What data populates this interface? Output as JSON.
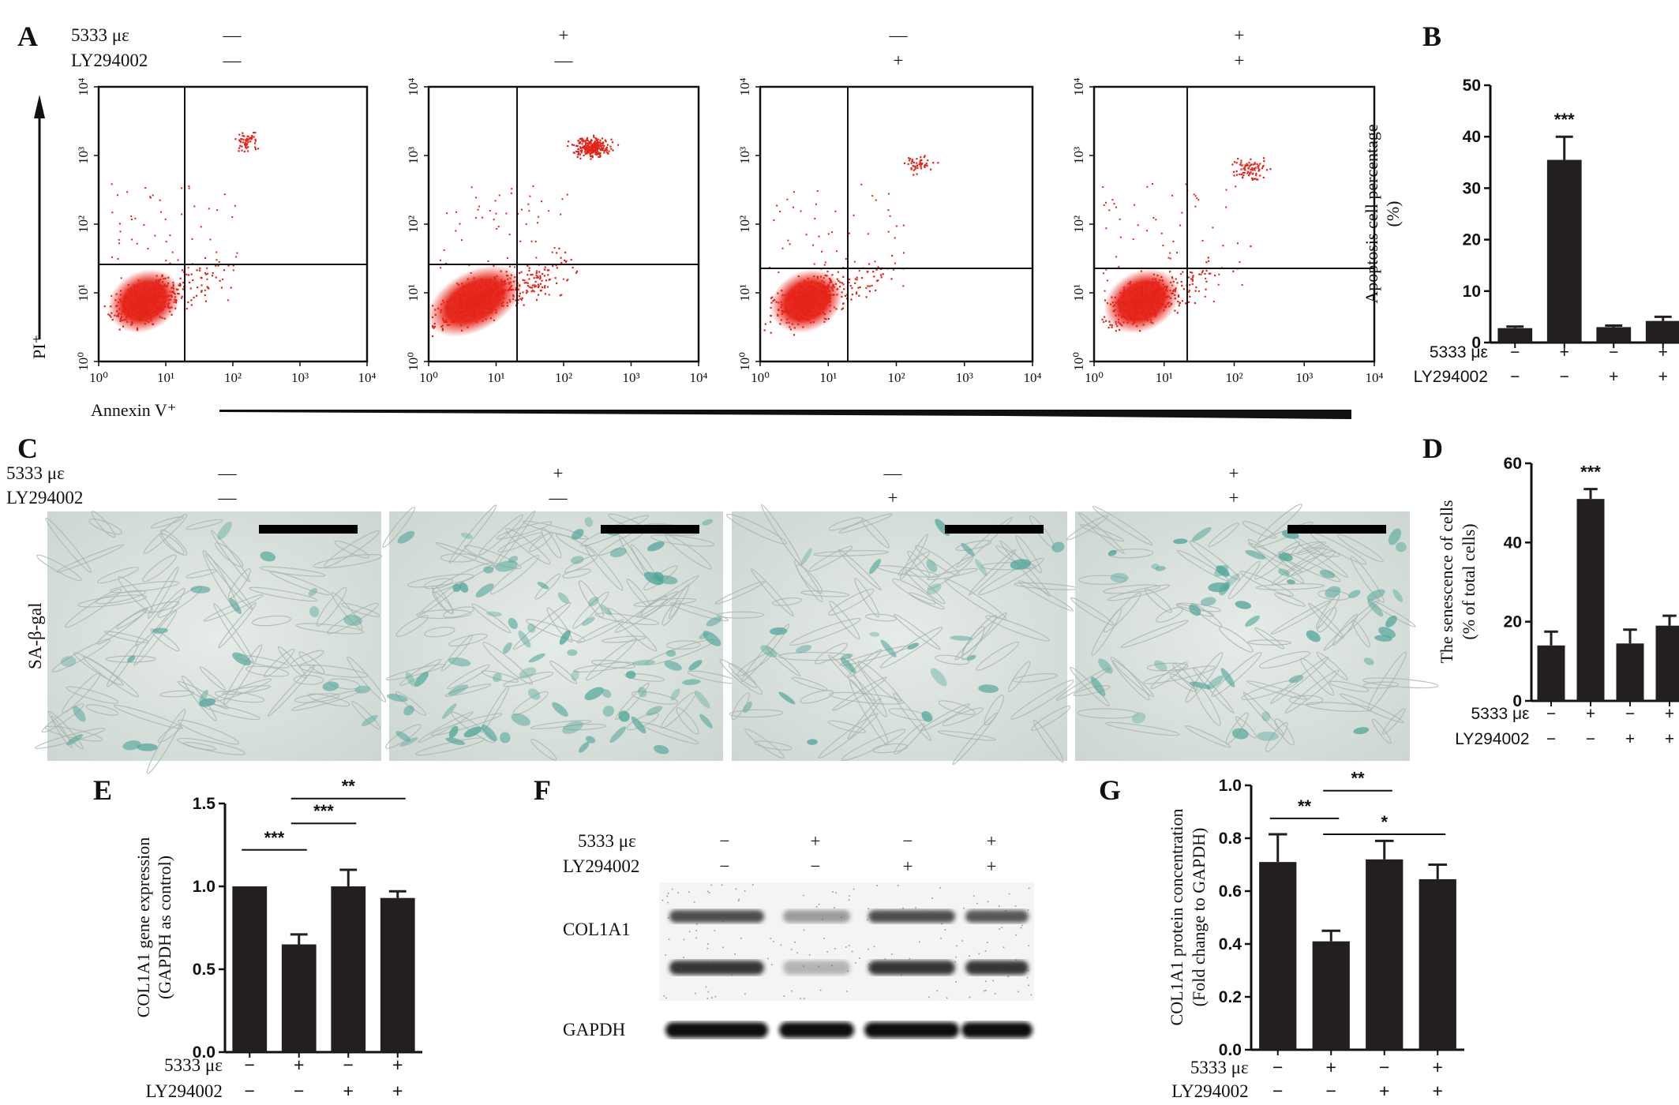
{
  "treatment_labels": {
    "strain": "5333  με",
    "inhibitor": "LY294002"
  },
  "conditions": [
    {
      "strain": "—",
      "inhibitor": "—"
    },
    {
      "strain": "+",
      "inhibitor": "—"
    },
    {
      "strain": "—",
      "inhibitor": "+"
    },
    {
      "strain": "+",
      "inhibitor": "+"
    }
  ],
  "bar_conditions": [
    {
      "strain": "−",
      "inhibitor": "−"
    },
    {
      "strain": "+",
      "inhibitor": "−"
    },
    {
      "strain": "−",
      "inhibitor": "+"
    },
    {
      "strain": "+",
      "inhibitor": "+"
    }
  ],
  "panels": {
    "A": "A",
    "B": "B",
    "C": "C",
    "D": "D",
    "E": "E",
    "F": "F",
    "G": "G"
  },
  "panel_A": {
    "y_axis_label": "PI⁺",
    "x_axis_label": "Annexin V⁺",
    "ticks": [
      "10⁰",
      "10¹",
      "10²",
      "10³",
      "10⁴"
    ],
    "dot_color": "#e52217"
  },
  "panel_C": {
    "row_label": "SA-β-gal"
  },
  "panel_F": {
    "bands": [
      "COL1A1",
      "GAPDH"
    ]
  },
  "chart_data": [
    {
      "panel": "B",
      "type": "bar",
      "title": "",
      "ylabel": [
        "Apoptosis cell percentage",
        "(%)"
      ],
      "ylim": [
        0,
        50
      ],
      "yticks": [
        0,
        10,
        20,
        30,
        40,
        50
      ],
      "values": [
        2.8,
        35.5,
        3.0,
        4.2
      ],
      "errors": [
        0.3,
        4.5,
        0.3,
        0.8
      ],
      "annotations": [
        {
          "bar": 1,
          "text": "***"
        }
      ],
      "brackets": []
    },
    {
      "panel": "D",
      "type": "bar",
      "title": "",
      "ylabel": [
        "The senescence of cells",
        "(% of total cells)"
      ],
      "ylim": [
        0,
        60
      ],
      "yticks": [
        0,
        20,
        40,
        60
      ],
      "values": [
        14,
        51,
        14.5,
        19
      ],
      "errors": [
        3.5,
        2.5,
        3.5,
        2.5
      ],
      "annotations": [
        {
          "bar": 1,
          "text": "***"
        }
      ],
      "brackets": []
    },
    {
      "panel": "E",
      "type": "bar",
      "title": "",
      "ylabel": [
        "COL1A1 gene expression",
        "(GAPDH as control)"
      ],
      "ylim": [
        0,
        1.5
      ],
      "yticks": [
        "0.0",
        "0.5",
        "1.0",
        "1.5"
      ],
      "values": [
        1.0,
        0.65,
        1.0,
        0.93
      ],
      "errors": [
        0.0,
        0.06,
        0.1,
        0.04
      ],
      "annotations": [],
      "brackets": [
        {
          "from": 0,
          "to": 1,
          "level": 1.22,
          "text": "***"
        },
        {
          "from": 1,
          "to": 2,
          "level": 1.38,
          "text": "***"
        },
        {
          "from": 1,
          "to": 3,
          "level": 1.53,
          "text": "**"
        }
      ]
    },
    {
      "panel": "G",
      "type": "bar",
      "title": "",
      "ylabel": [
        "COL1A1 protein concentration",
        "(Fold change to GAPDH)"
      ],
      "ylim": [
        0,
        1.0
      ],
      "yticks": [
        "0.0",
        "0.2",
        "0.4",
        "0.6",
        "0.8",
        "1.0"
      ],
      "values": [
        0.71,
        0.41,
        0.72,
        0.645
      ],
      "errors": [
        0.105,
        0.04,
        0.07,
        0.055
      ],
      "annotations": [],
      "brackets": [
        {
          "from": 0,
          "to": 1,
          "level": 0.875,
          "text": "**"
        },
        {
          "from": 1,
          "to": 2,
          "level": 0.98,
          "text": "**"
        },
        {
          "from": 1,
          "to": 3,
          "level": 0.815,
          "text": "*"
        }
      ]
    }
  ]
}
